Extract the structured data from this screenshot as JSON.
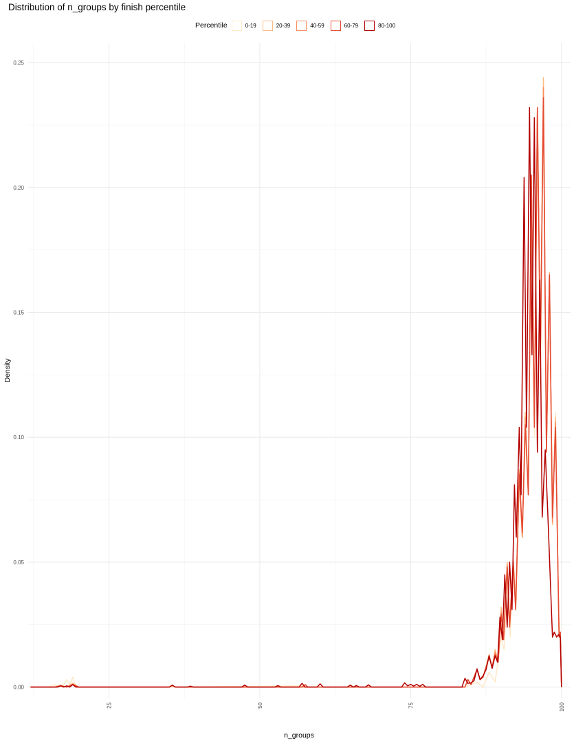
{
  "chart_data": {
    "type": "line",
    "title": "Distribution of n_groups by finish percentile",
    "xlabel": "n_groups",
    "ylabel": "Density",
    "xlim": [
      11.5,
      101.5
    ],
    "ylim": [
      -0.0045,
      0.258
    ],
    "x_ticks": [
      25,
      50,
      75,
      100
    ],
    "y_ticks": [
      0.0,
      0.05,
      0.1,
      0.15,
      0.2,
      0.25
    ],
    "y_tick_labels": [
      "0.00",
      "0.05",
      "0.10",
      "0.15",
      "0.20",
      "0.25"
    ],
    "grid": true,
    "legend": {
      "title": "Percentile",
      "placement": "top",
      "entries": [
        "0-19",
        "20-39",
        "40-59",
        "60-79",
        "80-100"
      ]
    },
    "series": [
      {
        "name": "0-19",
        "color": "#FEE8C8",
        "points": [
          [
            12,
            0
          ],
          [
            15,
            0
          ],
          [
            16,
            0.001
          ],
          [
            16.8,
            0
          ],
          [
            17.5,
            0.001
          ],
          [
            18,
            0.003
          ],
          [
            18.5,
            0.001
          ],
          [
            19,
            0.004
          ],
          [
            19.5,
            0
          ],
          [
            21,
            0
          ],
          [
            35,
            0
          ],
          [
            57,
            0.0005
          ],
          [
            58,
            0
          ],
          [
            84,
            0
          ],
          [
            86,
            0.002
          ],
          [
            87,
            0
          ],
          [
            88,
            0.006
          ],
          [
            89,
            0.002
          ],
          [
            90,
            0.02
          ],
          [
            90.5,
            0.015
          ],
          [
            91,
            0.04
          ],
          [
            91.5,
            0.02
          ],
          [
            92,
            0.05
          ],
          [
            92.5,
            0.035
          ],
          [
            93,
            0.08
          ],
          [
            93.5,
            0.06
          ],
          [
            94,
            0.1
          ],
          [
            94.5,
            0.08
          ],
          [
            95,
            0.19
          ],
          [
            95.5,
            0.1
          ],
          [
            96,
            0.22
          ],
          [
            96.5,
            0.12
          ],
          [
            97,
            0.23
          ],
          [
            97.5,
            0.1
          ],
          [
            98,
            0.16
          ],
          [
            98.5,
            0.07
          ],
          [
            99,
            0.11
          ],
          [
            99.5,
            0.03
          ],
          [
            99.8,
            0.02
          ],
          [
            100,
            0
          ]
        ]
      },
      {
        "name": "20-39",
        "color": "#FDBB84",
        "points": [
          [
            12,
            0
          ],
          [
            16,
            0
          ],
          [
            17,
            0.0008
          ],
          [
            18,
            0
          ],
          [
            19,
            0.0015
          ],
          [
            20,
            0
          ],
          [
            35,
            0
          ],
          [
            35.5,
            0.0005
          ],
          [
            36,
            0
          ],
          [
            84,
            0
          ],
          [
            84.5,
            0.003
          ],
          [
            85,
            0.001
          ],
          [
            86,
            0.007
          ],
          [
            86.5,
            0.003
          ],
          [
            87,
            0.004
          ],
          [
            88,
            0.013
          ],
          [
            88.5,
            0.008
          ],
          [
            89,
            0.015
          ],
          [
            89.5,
            0.01
          ],
          [
            90,
            0.032
          ],
          [
            90.4,
            0.02
          ],
          [
            91,
            0.05
          ],
          [
            91.4,
            0.025
          ],
          [
            92,
            0.051
          ],
          [
            92.4,
            0.032
          ],
          [
            93,
            0.087
          ],
          [
            93.5,
            0.06
          ],
          [
            94,
            0.11
          ],
          [
            94.5,
            0.077
          ],
          [
            95,
            0.205
          ],
          [
            95.5,
            0.105
          ],
          [
            96,
            0.232
          ],
          [
            96.5,
            0.132
          ],
          [
            97,
            0.244
          ],
          [
            97.5,
            0.095
          ],
          [
            98,
            0.166
          ],
          [
            98.5,
            0.065
          ],
          [
            99,
            0.108
          ],
          [
            99.6,
            0.02
          ],
          [
            99.8,
            0.022
          ],
          [
            100,
            0
          ]
        ]
      },
      {
        "name": "40-59",
        "color": "#FC8D59",
        "points": [
          [
            12,
            0
          ],
          [
            16,
            0
          ],
          [
            17,
            0.0006
          ],
          [
            18,
            0
          ],
          [
            19,
            0.0012
          ],
          [
            20,
            0
          ],
          [
            35,
            0
          ],
          [
            35.5,
            0.0006
          ],
          [
            36,
            0
          ],
          [
            84,
            0
          ],
          [
            84.5,
            0.003
          ],
          [
            85,
            0.001
          ],
          [
            86,
            0.007
          ],
          [
            86.5,
            0.003
          ],
          [
            87,
            0.004
          ],
          [
            88,
            0.012
          ],
          [
            88.5,
            0.008
          ],
          [
            89,
            0.014
          ],
          [
            89.5,
            0.01
          ],
          [
            90,
            0.03
          ],
          [
            90.4,
            0.019
          ],
          [
            91,
            0.049
          ],
          [
            91.4,
            0.024
          ],
          [
            92,
            0.05
          ],
          [
            92.4,
            0.031
          ],
          [
            93,
            0.086
          ],
          [
            93.5,
            0.06
          ],
          [
            94,
            0.108
          ],
          [
            94.5,
            0.077
          ],
          [
            95,
            0.205
          ],
          [
            95.5,
            0.104
          ],
          [
            96,
            0.23
          ],
          [
            96.5,
            0.132
          ],
          [
            97,
            0.24
          ],
          [
            97.5,
            0.094
          ],
          [
            98,
            0.165
          ],
          [
            98.5,
            0.066
          ],
          [
            99,
            0.106
          ],
          [
            99.6,
            0.02
          ],
          [
            99.8,
            0.022
          ],
          [
            100,
            0
          ]
        ]
      },
      {
        "name": "60-79",
        "color": "#E34A33",
        "points": [
          [
            12,
            0
          ],
          [
            16,
            0
          ],
          [
            17,
            0.0005
          ],
          [
            18,
            0
          ],
          [
            19,
            0.001
          ],
          [
            20,
            0
          ],
          [
            35,
            0
          ],
          [
            35.5,
            0.0007
          ],
          [
            36,
            0
          ],
          [
            57,
            0
          ],
          [
            57.5,
            0.001
          ],
          [
            58,
            0
          ],
          [
            84,
            0
          ],
          [
            84.5,
            0.003
          ],
          [
            85,
            0.001
          ],
          [
            86,
            0.007
          ],
          [
            86.5,
            0.003
          ],
          [
            87,
            0.004
          ],
          [
            88,
            0.012
          ],
          [
            88.5,
            0.008
          ],
          [
            89,
            0.013
          ],
          [
            89.5,
            0.01
          ],
          [
            90,
            0.029
          ],
          [
            90.4,
            0.019
          ],
          [
            91,
            0.048
          ],
          [
            91.4,
            0.024
          ],
          [
            92,
            0.05
          ],
          [
            92.4,
            0.031
          ],
          [
            93,
            0.085
          ],
          [
            93.5,
            0.062
          ],
          [
            94,
            0.105
          ],
          [
            94.5,
            0.077
          ],
          [
            95,
            0.205
          ],
          [
            95.5,
            0.104
          ],
          [
            96,
            0.232
          ],
          [
            96.5,
            0.133
          ],
          [
            97,
            0.236
          ],
          [
            97.5,
            0.094
          ],
          [
            98,
            0.165
          ],
          [
            98.5,
            0.068
          ],
          [
            99,
            0.104
          ],
          [
            99.6,
            0.02
          ],
          [
            99.8,
            0.022
          ],
          [
            100,
            0
          ]
        ]
      },
      {
        "name": "80-100",
        "color": "#B30000",
        "points": [
          [
            12,
            0
          ],
          [
            16.5,
            0
          ],
          [
            17,
            0.0005
          ],
          [
            17.5,
            0
          ],
          [
            18,
            0.0005
          ],
          [
            18.5,
            0
          ],
          [
            19,
            0.001
          ],
          [
            19.5,
            0
          ],
          [
            35,
            0
          ],
          [
            35.5,
            0.0008
          ],
          [
            36,
            0
          ],
          [
            38,
            0
          ],
          [
            38.5,
            0.0004
          ],
          [
            39,
            0
          ],
          [
            47,
            0
          ],
          [
            47.5,
            0.0008
          ],
          [
            48,
            0
          ],
          [
            52.5,
            0
          ],
          [
            53,
            0.0006
          ],
          [
            53.5,
            0
          ],
          [
            56.5,
            0
          ],
          [
            57,
            0.0015
          ],
          [
            57.5,
            0
          ],
          [
            59.5,
            0
          ],
          [
            60,
            0.0013
          ],
          [
            60.5,
            0
          ],
          [
            64.5,
            0
          ],
          [
            65,
            0.0008
          ],
          [
            65.5,
            0
          ],
          [
            66,
            0.0006
          ],
          [
            66.5,
            0
          ],
          [
            67.5,
            0
          ],
          [
            68,
            0.0009
          ],
          [
            68.5,
            0
          ],
          [
            73.5,
            0
          ],
          [
            74,
            0.0017
          ],
          [
            74.5,
            0.0005
          ],
          [
            75,
            0.0011
          ],
          [
            75.5,
            0.0004
          ],
          [
            76,
            0.0011
          ],
          [
            76.5,
            0.0003
          ],
          [
            77,
            0.0011
          ],
          [
            77.5,
            0
          ],
          [
            83.5,
            0
          ],
          [
            84,
            0.0035
          ],
          [
            84.5,
            0.0015
          ],
          [
            85,
            0.0017
          ],
          [
            85.5,
            0.0025
          ],
          [
            86,
            0.0073
          ],
          [
            86.5,
            0.003
          ],
          [
            87,
            0.0045
          ],
          [
            87.5,
            0.007
          ],
          [
            88,
            0.0126
          ],
          [
            88.5,
            0.0075
          ],
          [
            89,
            0.0125
          ],
          [
            89.4,
            0.01
          ],
          [
            89.8,
            0.028
          ],
          [
            90.2,
            0.019
          ],
          [
            90.6,
            0.045
          ],
          [
            91,
            0.024
          ],
          [
            91.4,
            0.05
          ],
          [
            91.8,
            0.031
          ],
          [
            92.2,
            0.081
          ],
          [
            92.5,
            0.06
          ],
          [
            93,
            0.104
          ],
          [
            93.3,
            0.077
          ],
          [
            93.8,
            0.204
          ],
          [
            94.2,
            0.104
          ],
          [
            94.7,
            0.232
          ],
          [
            95.1,
            0.133
          ],
          [
            95.5,
            0.228
          ],
          [
            96,
            0.094
          ],
          [
            96.4,
            0.163
          ],
          [
            96.8,
            0.068
          ],
          [
            97.3,
            0.095
          ],
          [
            97.8,
            0.065
          ],
          [
            98.5,
            0.02
          ],
          [
            98.8,
            0.022
          ],
          [
            99.2,
            0.02
          ],
          [
            99.5,
            0.021
          ],
          [
            99.8,
            0.02
          ],
          [
            100,
            0
          ]
        ]
      }
    ]
  }
}
